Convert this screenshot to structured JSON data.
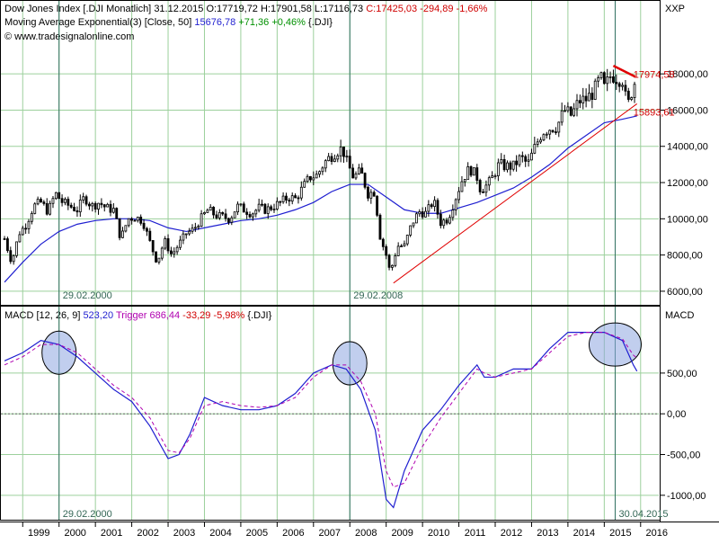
{
  "price_header": {
    "instrument": "Dow Jones Index [.DJI  Monatlich]",
    "date": "31.12.2015",
    "ohlc": "O:17719,72 H:17901,58 L:17116,73",
    "close_change": "C:17425,03 -294,89 -1,66%",
    "ma_label": "Moving Average Exponential(3) [Close, 50]",
    "ma_value": "15676,78",
    "ma_change": "+71,36 +0,46%",
    "ma_symbol": "{.DJI}",
    "website": "www.tradesignalonline.com"
  },
  "macd_header": {
    "label": "MACD [12, 26, 9]",
    "macd_value": "523,20",
    "trigger_label": "Trigger",
    "trigger_value": "686,44",
    "diff": "-33,29 -5,98%",
    "symbol": "{.DJI}"
  },
  "colors": {
    "up_candle": "#ffffff",
    "down_candle": "#000000",
    "moving_average": "#1f1fd0",
    "trendline": "#e00000",
    "macd_line": "#1f1fd0",
    "trigger_line": "#b000b0",
    "gridline": "#9cd09c",
    "highlight_fill": "#8ea6e0"
  },
  "chart_data": [
    {
      "type": "candlestick",
      "title": "Dow Jones Index [.DJI  Monatlich]",
      "y_axis_label": "XXP",
      "y_ticks": [
        "18000,00",
        "16000,00",
        "14000,00",
        "12000,00",
        "10000,00",
        "8000,00",
        "6000,00"
      ],
      "ylim": [
        5300,
        19200
      ],
      "x_ticks": [
        "1999",
        "2000",
        "2001",
        "2002",
        "2003",
        "2004",
        "2005",
        "2006",
        "2007",
        "2008",
        "2009",
        "2010",
        "2011",
        "2012",
        "2013",
        "2014",
        "2015",
        "2016"
      ],
      "xlim": [
        1998.4,
        2016.5
      ],
      "grid": true,
      "legend": "top-left",
      "series_close": [
        [
          1998.5,
          8900
        ],
        [
          1998.7,
          7600
        ],
        [
          1998.9,
          9200
        ],
        [
          1999.1,
          9700
        ],
        [
          1999.3,
          10700
        ],
        [
          1999.5,
          10900
        ],
        [
          1999.7,
          10400
        ],
        [
          1999.9,
          11400
        ],
        [
          2000.1,
          10900
        ],
        [
          2000.3,
          10700
        ],
        [
          2000.5,
          10500
        ],
        [
          2000.7,
          11200
        ],
        [
          2000.9,
          10700
        ],
        [
          2001.1,
          10900
        ],
        [
          2001.3,
          10600
        ],
        [
          2001.5,
          10500
        ],
        [
          2001.7,
          8900
        ],
        [
          2001.9,
          10000
        ],
        [
          2002.1,
          10100
        ],
        [
          2002.3,
          9900
        ],
        [
          2002.5,
          8700
        ],
        [
          2002.7,
          7600
        ],
        [
          2002.9,
          8800
        ],
        [
          2003.1,
          8000
        ],
        [
          2003.3,
          8600
        ],
        [
          2003.5,
          9200
        ],
        [
          2003.7,
          9400
        ],
        [
          2003.9,
          10000
        ],
        [
          2004.1,
          10500
        ],
        [
          2004.3,
          10200
        ],
        [
          2004.5,
          10100
        ],
        [
          2004.7,
          10000
        ],
        [
          2004.9,
          10700
        ],
        [
          2005.1,
          10500
        ],
        [
          2005.3,
          10300
        ],
        [
          2005.5,
          10600
        ],
        [
          2005.7,
          10500
        ],
        [
          2005.9,
          10700
        ],
        [
          2006.1,
          10900
        ],
        [
          2006.3,
          11200
        ],
        [
          2006.5,
          11100
        ],
        [
          2006.7,
          11700
        ],
        [
          2006.9,
          12300
        ],
        [
          2007.1,
          12400
        ],
        [
          2007.3,
          13100
        ],
        [
          2007.5,
          13500
        ],
        [
          2007.7,
          13800
        ],
        [
          2007.8,
          13900
        ],
        [
          2007.9,
          13200
        ],
        [
          2008.1,
          12300
        ],
        [
          2008.3,
          12600
        ],
        [
          2008.5,
          11400
        ],
        [
          2008.7,
          11500
        ],
        [
          2008.8,
          9300
        ],
        [
          2008.9,
          8600
        ],
        [
          2009.0,
          8000
        ],
        [
          2009.1,
          7100
        ],
        [
          2009.2,
          7600
        ],
        [
          2009.3,
          8500
        ],
        [
          2009.5,
          8500
        ],
        [
          2009.7,
          9700
        ],
        [
          2009.9,
          10400
        ],
        [
          2010.1,
          10300
        ],
        [
          2010.3,
          11000
        ],
        [
          2010.5,
          9800
        ],
        [
          2010.7,
          10000
        ],
        [
          2010.9,
          11100
        ],
        [
          2011.1,
          12200
        ],
        [
          2011.3,
          12800
        ],
        [
          2011.5,
          12300
        ],
        [
          2011.6,
          11600
        ],
        [
          2011.8,
          11900
        ],
        [
          2011.9,
          12200
        ],
        [
          2012.1,
          13000
        ],
        [
          2012.3,
          12900
        ],
        [
          2012.5,
          12900
        ],
        [
          2012.7,
          13400
        ],
        [
          2012.9,
          13000
        ],
        [
          2013.1,
          14000
        ],
        [
          2013.3,
          14800
        ],
        [
          2013.5,
          15000
        ],
        [
          2013.7,
          15100
        ],
        [
          2013.9,
          16000
        ],
        [
          2014.1,
          15700
        ],
        [
          2014.3,
          16500
        ],
        [
          2014.5,
          16600
        ],
        [
          2014.7,
          17000
        ],
        [
          2014.9,
          17800
        ],
        [
          2015.0,
          17200
        ],
        [
          2015.2,
          18000
        ],
        [
          2015.3,
          17800
        ],
        [
          2015.5,
          17700
        ],
        [
          2015.6,
          16500
        ],
        [
          2015.7,
          16300
        ],
        [
          2015.8,
          17700
        ],
        [
          2015.9,
          17425
        ]
      ],
      "moving_average_ema50": [
        [
          1998.5,
          6500
        ],
        [
          1999.0,
          7600
        ],
        [
          1999.5,
          8600
        ],
        [
          2000.0,
          9300
        ],
        [
          2000.5,
          9700
        ],
        [
          2001.0,
          9900
        ],
        [
          2001.5,
          10000
        ],
        [
          2002.0,
          10000
        ],
        [
          2002.5,
          9900
        ],
        [
          2003.0,
          9500
        ],
        [
          2003.5,
          9300
        ],
        [
          2004.0,
          9500
        ],
        [
          2004.5,
          9700
        ],
        [
          2005.0,
          9900
        ],
        [
          2005.5,
          10000
        ],
        [
          2006.0,
          10200
        ],
        [
          2006.5,
          10500
        ],
        [
          2007.0,
          10900
        ],
        [
          2007.5,
          11500
        ],
        [
          2008.0,
          11900
        ],
        [
          2008.5,
          11900
        ],
        [
          2009.0,
          11200
        ],
        [
          2009.5,
          10500
        ],
        [
          2010.0,
          10300
        ],
        [
          2010.5,
          10300
        ],
        [
          2011.0,
          10600
        ],
        [
          2011.5,
          10900
        ],
        [
          2012.0,
          11300
        ],
        [
          2012.5,
          11700
        ],
        [
          2013.0,
          12300
        ],
        [
          2013.5,
          13000
        ],
        [
          2014.0,
          13900
        ],
        [
          2014.5,
          14600
        ],
        [
          2015.0,
          15300
        ],
        [
          2015.5,
          15500
        ],
        [
          2015.9,
          15677
        ]
      ],
      "trendlines": [
        {
          "from": [
            2009.2,
            6450
          ],
          "to": [
            2015.9,
            16350
          ]
        },
        {
          "from": [
            2015.25,
            18450
          ],
          "to": [
            2015.85,
            17850
          ]
        }
      ],
      "annotations": [
        {
          "text": "17974,58",
          "x": 2015.9,
          "y": 17975
        },
        {
          "text": "15893,61",
          "x": 2015.9,
          "y": 15894
        },
        {
          "text": "29.02.2000",
          "x": 2000.0,
          "y": 5800
        },
        {
          "text": "29.02.2008",
          "x": 2008.0,
          "y": 5800
        }
      ],
      "vertical_markers": [
        2000.0,
        2008.0,
        2015.3
      ]
    },
    {
      "type": "line",
      "title": "MACD [12, 26, 9]",
      "y_axis_label": "MACD",
      "y_ticks": [
        "500,00",
        "0,00",
        "-500,00",
        "-1000,00"
      ],
      "ylim": [
        -1300,
        1150
      ],
      "x_ticks": [
        "1999",
        "2000",
        "2001",
        "2002",
        "2003",
        "2004",
        "2005",
        "2006",
        "2007",
        "2008",
        "2009",
        "2010",
        "2011",
        "2012",
        "2013",
        "2014",
        "2015",
        "2016"
      ],
      "xlim": [
        1998.4,
        2016.5
      ],
      "grid": true,
      "series": [
        {
          "name": "MACD",
          "points": [
            [
              1998.5,
              650
            ],
            [
              1999.0,
              750
            ],
            [
              1999.5,
              900
            ],
            [
              2000.0,
              850
            ],
            [
              2000.5,
              700
            ],
            [
              2001.0,
              500
            ],
            [
              2001.5,
              300
            ],
            [
              2002.0,
              150
            ],
            [
              2002.5,
              -150
            ],
            [
              2003.0,
              -550
            ],
            [
              2003.3,
              -500
            ],
            [
              2003.6,
              -250
            ],
            [
              2004.0,
              200
            ],
            [
              2004.5,
              100
            ],
            [
              2005.0,
              50
            ],
            [
              2005.5,
              50
            ],
            [
              2006.0,
              100
            ],
            [
              2006.5,
              250
            ],
            [
              2007.0,
              500
            ],
            [
              2007.5,
              600
            ],
            [
              2007.9,
              550
            ],
            [
              2008.3,
              300
            ],
            [
              2008.7,
              -200
            ],
            [
              2009.0,
              -1050
            ],
            [
              2009.2,
              -1150
            ],
            [
              2009.5,
              -700
            ],
            [
              2010.0,
              -200
            ],
            [
              2010.5,
              50
            ],
            [
              2011.0,
              350
            ],
            [
              2011.5,
              600
            ],
            [
              2011.7,
              450
            ],
            [
              2012.0,
              450
            ],
            [
              2012.5,
              550
            ],
            [
              2013.0,
              550
            ],
            [
              2013.5,
              800
            ],
            [
              2014.0,
              1000
            ],
            [
              2014.5,
              1000
            ],
            [
              2015.0,
              1000
            ],
            [
              2015.5,
              900
            ],
            [
              2015.8,
              600
            ],
            [
              2015.9,
              523
            ]
          ]
        },
        {
          "name": "Trigger",
          "points": [
            [
              1998.5,
              600
            ],
            [
              1999.0,
              700
            ],
            [
              1999.5,
              850
            ],
            [
              2000.0,
              850
            ],
            [
              2000.5,
              750
            ],
            [
              2001.0,
              550
            ],
            [
              2001.5,
              350
            ],
            [
              2002.0,
              200
            ],
            [
              2002.5,
              -50
            ],
            [
              2003.0,
              -450
            ],
            [
              2003.3,
              -480
            ],
            [
              2003.6,
              -300
            ],
            [
              2004.0,
              100
            ],
            [
              2004.5,
              150
            ],
            [
              2005.0,
              100
            ],
            [
              2005.5,
              80
            ],
            [
              2006.0,
              100
            ],
            [
              2006.5,
              200
            ],
            [
              2007.0,
              450
            ],
            [
              2007.5,
              600
            ],
            [
              2007.9,
              600
            ],
            [
              2008.3,
              400
            ],
            [
              2008.7,
              0
            ],
            [
              2009.0,
              -700
            ],
            [
              2009.2,
              -900
            ],
            [
              2009.5,
              -850
            ],
            [
              2010.0,
              -400
            ],
            [
              2010.5,
              -50
            ],
            [
              2011.0,
              250
            ],
            [
              2011.5,
              550
            ],
            [
              2011.7,
              500
            ],
            [
              2012.0,
              450
            ],
            [
              2012.5,
              500
            ],
            [
              2013.0,
              550
            ],
            [
              2013.5,
              750
            ],
            [
              2014.0,
              950
            ],
            [
              2014.5,
              1000
            ],
            [
              2015.0,
              1000
            ],
            [
              2015.5,
              920
            ],
            [
              2015.8,
              720
            ],
            [
              2015.9,
              686
            ]
          ]
        }
      ],
      "highlights": [
        {
          "x": 2000.0,
          "y": 750
        },
        {
          "x": 2008.0,
          "y": 620
        },
        {
          "x": 2015.3,
          "y": 850
        }
      ],
      "annotations": [
        {
          "text": "29.02.2000",
          "x": 2000.0,
          "y": -1270
        },
        {
          "text": "30.04.2015",
          "x": 2015.3,
          "y": -1270
        }
      ]
    }
  ]
}
